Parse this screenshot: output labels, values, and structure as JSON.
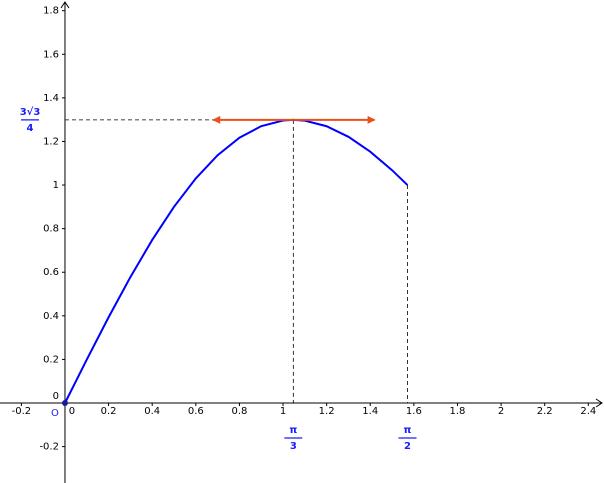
{
  "chart_data": {
    "type": "line",
    "xlim": [
      -0.298,
      2.472
    ],
    "ylim": [
      -0.367,
      1.849
    ],
    "xticks": [
      -0.2,
      0,
      0.2,
      0.4,
      0.6,
      0.8,
      1,
      1.2,
      1.4,
      1.6,
      1.8,
      2,
      2.2,
      2.4
    ],
    "yticks": [
      -0.2,
      0,
      0.2,
      0.4,
      0.6,
      0.8,
      1,
      1.2,
      1.4,
      1.6,
      1.8
    ],
    "origin_label": "O",
    "series": [
      {
        "color": "#0000ff",
        "x": [
          0,
          0.1,
          0.2,
          0.3,
          0.4,
          0.5,
          0.6,
          0.7,
          0.8,
          0.9,
          1.0,
          1.0472,
          1.1,
          1.2,
          1.3,
          1.4,
          1.5,
          1.5708
        ],
        "values": [
          0,
          0.1992,
          0.3934,
          0.5778,
          0.7481,
          0.9002,
          1.0306,
          1.1369,
          1.2172,
          1.2702,
          1.2961,
          1.299,
          1.2955,
          1.2698,
          1.2214,
          1.1529,
          1.0681,
          1.0
        ]
      }
    ],
    "tangent": {
      "x": [
        0.68,
        1.42
      ],
      "y": 1.299,
      "color": "#e8501c"
    },
    "annotations": {
      "y_max": {
        "numerator": "3√3",
        "denominator": "4",
        "value": 1.299
      },
      "x_max": {
        "numerator": "π",
        "denominator": "3",
        "value": 1.0472
      },
      "x_end": {
        "numerator": "π",
        "denominator": "2",
        "value": 1.5708,
        "y": 1.0
      }
    }
  }
}
